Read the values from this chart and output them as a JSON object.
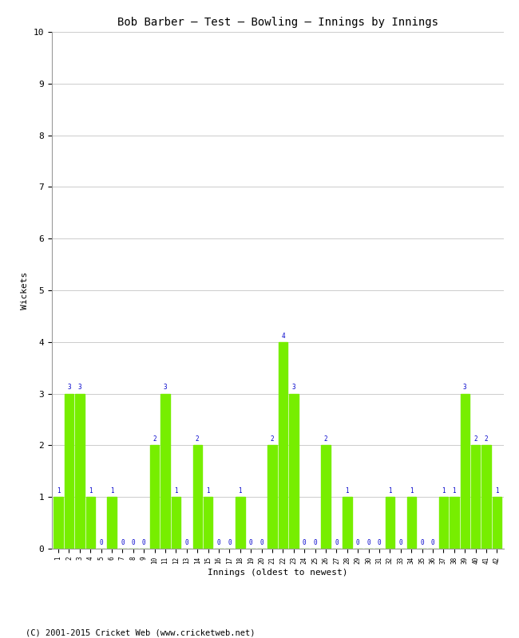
{
  "title": "Bob Barber – Test – Bowling – Innings by Innings",
  "xlabel": "Innings (oldest to newest)",
  "ylabel": "Wickets",
  "bar_color": "#77ee00",
  "label_color": "#0000cc",
  "background_color": "#ffffff",
  "grid_color": "#cccccc",
  "ylim": [
    0,
    10
  ],
  "yticks": [
    0,
    1,
    2,
    3,
    4,
    5,
    6,
    7,
    8,
    9,
    10
  ],
  "footer": "(C) 2001-2015 Cricket Web (www.cricketweb.net)",
  "innings": [
    1,
    2,
    3,
    4,
    5,
    6,
    7,
    8,
    9,
    10,
    11,
    12,
    13,
    14,
    15,
    16,
    17,
    18,
    19,
    20,
    21,
    22,
    23,
    24,
    25,
    26,
    27,
    28,
    29,
    30,
    31,
    32,
    33,
    34,
    35,
    36,
    37,
    38,
    39,
    40,
    41,
    42
  ],
  "wickets": [
    1,
    3,
    3,
    1,
    0,
    1,
    0,
    0,
    0,
    2,
    3,
    1,
    0,
    2,
    1,
    0,
    0,
    1,
    0,
    0,
    2,
    4,
    3,
    0,
    0,
    2,
    0,
    1,
    0,
    0,
    0,
    1,
    0,
    1,
    0,
    0,
    1,
    1,
    3,
    2,
    2,
    1
  ]
}
